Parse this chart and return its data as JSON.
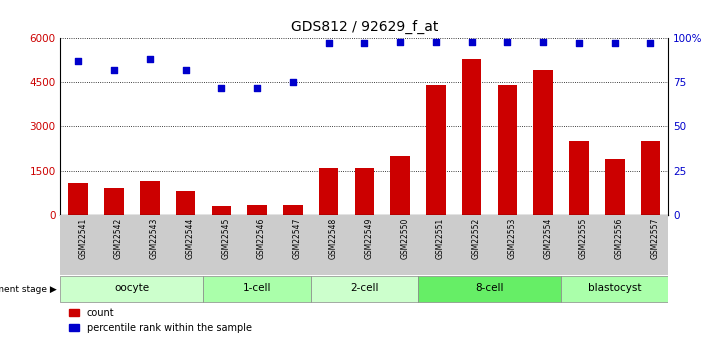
{
  "title": "GDS812 / 92629_f_at",
  "samples": [
    "GSM22541",
    "GSM22542",
    "GSM22543",
    "GSM22544",
    "GSM22545",
    "GSM22546",
    "GSM22547",
    "GSM22548",
    "GSM22549",
    "GSM22550",
    "GSM22551",
    "GSM22552",
    "GSM22553",
    "GSM22554",
    "GSM22555",
    "GSM22556",
    "GSM22557"
  ],
  "bar_values": [
    1100,
    900,
    1150,
    800,
    300,
    350,
    350,
    1600,
    1580,
    2000,
    4400,
    5300,
    4400,
    4900,
    2500,
    1900,
    2500
  ],
  "dot_values": [
    87,
    82,
    88,
    82,
    72,
    72,
    75,
    97,
    97,
    98,
    98,
    98,
    98,
    98,
    97,
    97,
    97
  ],
  "bar_color": "#cc0000",
  "dot_color": "#0000cc",
  "ylim_left": [
    0,
    6000
  ],
  "ylim_right": [
    0,
    100
  ],
  "yticks_left": [
    0,
    1500,
    3000,
    4500,
    6000
  ],
  "yticks_right": [
    0,
    25,
    50,
    75,
    100
  ],
  "yticklabels_right": [
    "0",
    "25",
    "50",
    "75",
    "100%"
  ],
  "groups": [
    {
      "label": "oocyte",
      "start": 0,
      "end": 4,
      "color": "#ccffcc"
    },
    {
      "label": "1-cell",
      "start": 4,
      "end": 7,
      "color": "#aaffaa"
    },
    {
      "label": "2-cell",
      "start": 7,
      "end": 10,
      "color": "#ccffcc"
    },
    {
      "label": "8-cell",
      "start": 10,
      "end": 14,
      "color": "#66ee66"
    },
    {
      "label": "blastocyst",
      "start": 14,
      "end": 17,
      "color": "#aaffaa"
    }
  ],
  "legend_bar": "count",
  "legend_dot": "percentile rank within the sample",
  "dev_stage_label": "development stage",
  "background_color": "#ffffff",
  "sample_bg": "#cccccc",
  "grid_color": "#000000",
  "spine_color": "#000000"
}
